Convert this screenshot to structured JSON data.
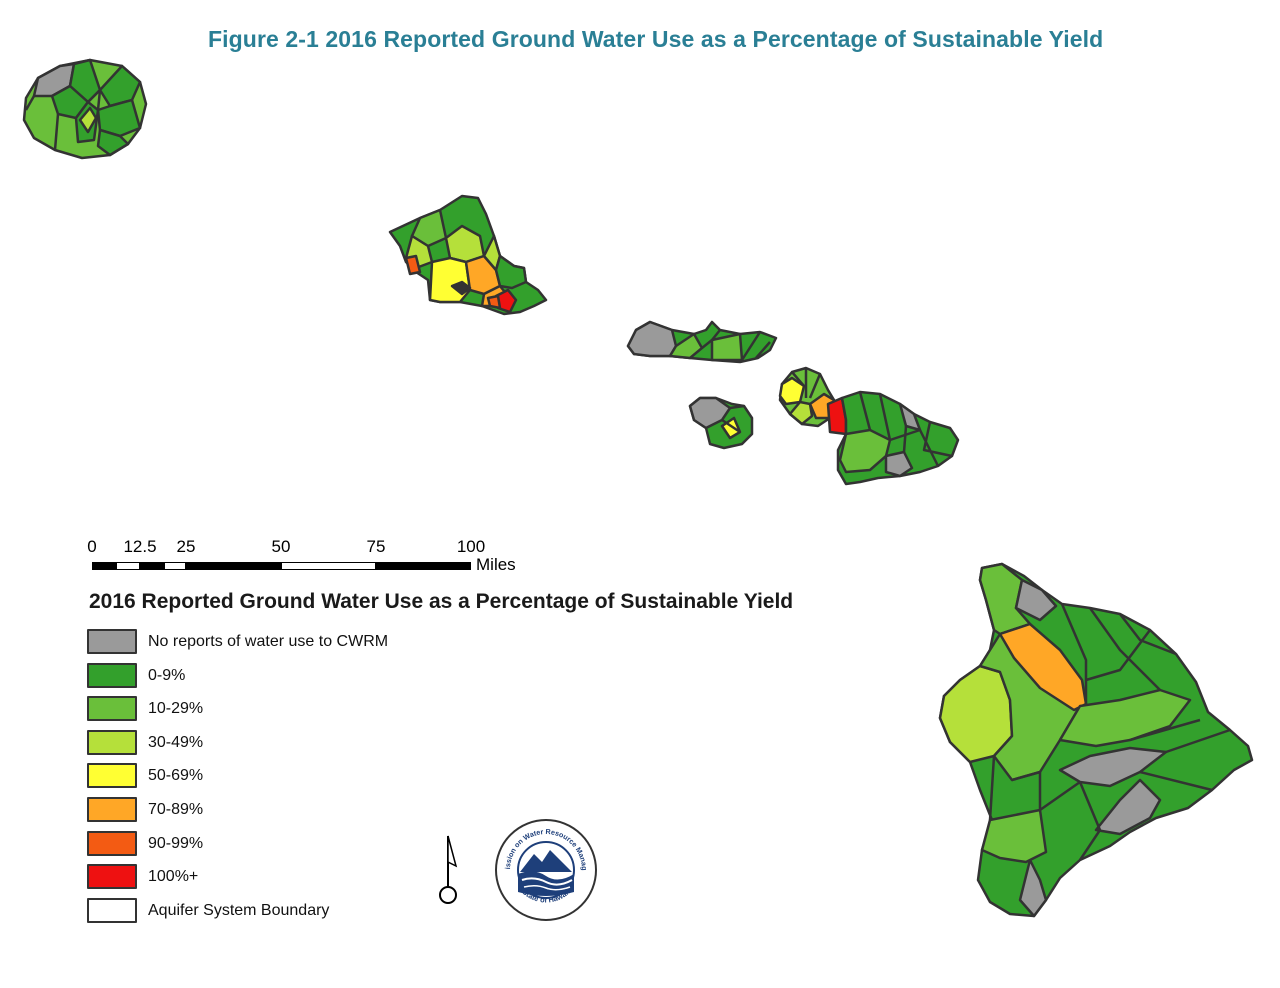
{
  "figure_title": "Figure 2-1  2016 Reported Ground Water Use as a Percentage of Sustainable Yield",
  "scale_bar": {
    "ticks": [
      "0",
      "12.5",
      "25",
      "50",
      "75",
      "100"
    ],
    "unit": "Miles"
  },
  "legend": {
    "title": "2016 Reported Ground Water Use as a Percentage of Sustainable Yield",
    "items": [
      {
        "label": "No reports of water use to CWRM",
        "color": "#9a9a9a"
      },
      {
        "label": "0-9%",
        "color": "#33a02c"
      },
      {
        "label": "10-29%",
        "color": "#6abf3a"
      },
      {
        "label": "30-49%",
        "color": "#b5e03a"
      },
      {
        "label": "50-69%",
        "color": "#ffff33"
      },
      {
        "label": "70-89%",
        "color": "#ffa726"
      },
      {
        "label": "90-99%",
        "color": "#f35b13"
      },
      {
        "label": "100%+",
        "color": "#ee1111"
      },
      {
        "label": "Aquifer System Boundary",
        "color": "#ffffff"
      }
    ]
  },
  "seal": {
    "top_text": "Commission on Water Resource Management",
    "bottom_text": "State of Hawaii"
  },
  "palette": {
    "gray": "#9a9a9a",
    "green_0_9": "#33a02c",
    "green_10_29": "#6abf3a",
    "green_30_49": "#b5e03a",
    "yellow_50_69": "#ffff33",
    "orange_70_89": "#ffa726",
    "orange_90_99": "#f35b13",
    "red_100": "#ee1111",
    "outline": "#333333"
  }
}
